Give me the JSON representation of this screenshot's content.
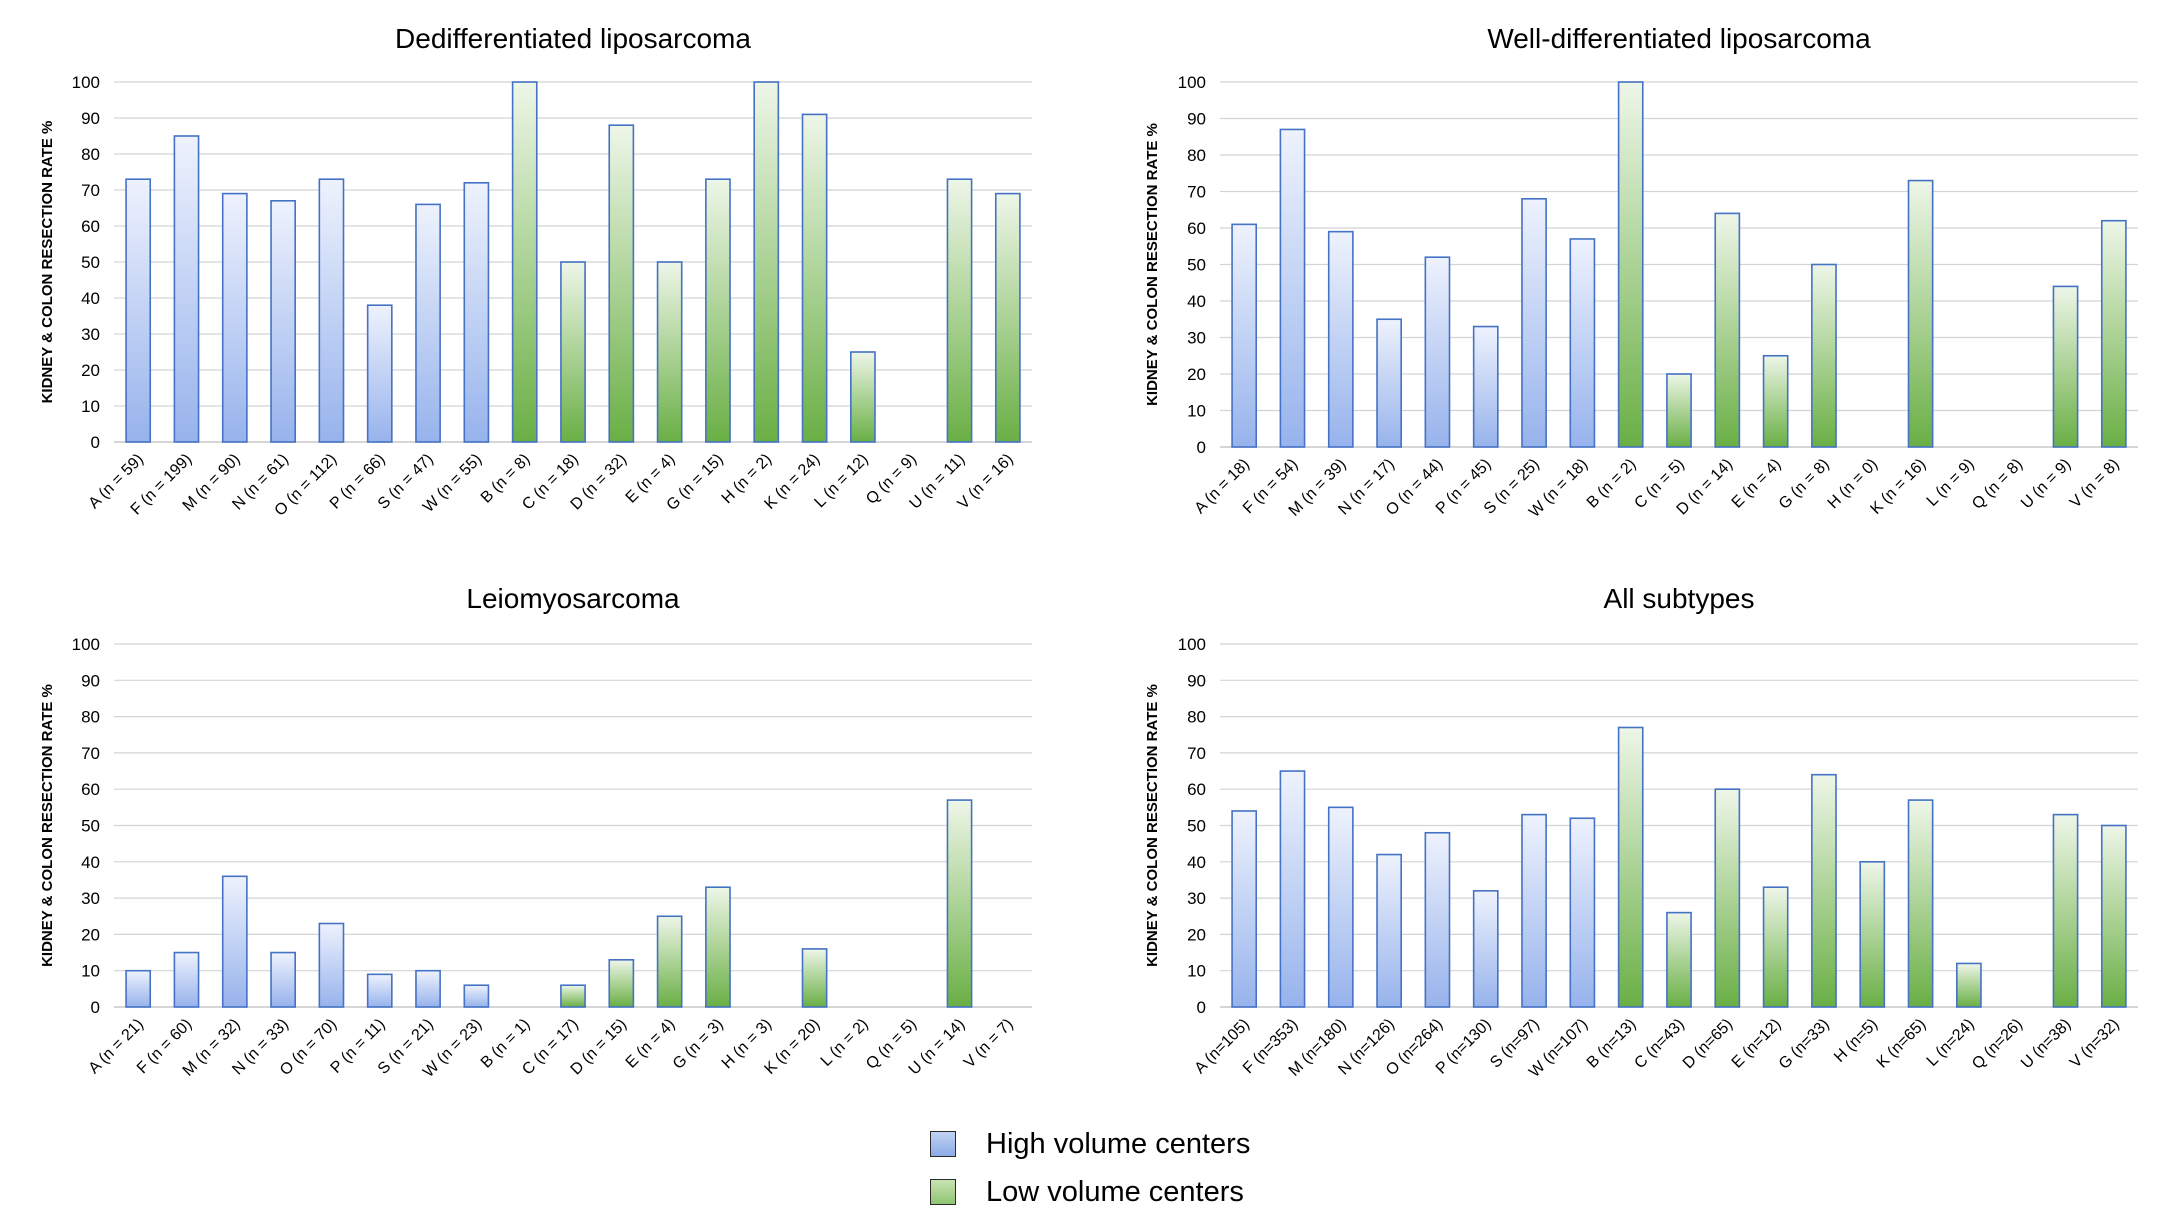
{
  "colors": {
    "high_border": "#4472c4",
    "high_top": "#eef2fd",
    "high_bottom": "#97b3ec",
    "low_border": "#4472c4",
    "low_top": "#eef6e8",
    "low_bottom": "#6aaf45",
    "grid": "#d4d4d4"
  },
  "chart_data": [
    {
      "type": "bar",
      "title": "Dedifferentiated liposarcoma",
      "ylabel": "KIDNEY & COLON RESECTION RATE %",
      "ylim": [
        0,
        100
      ],
      "yticks": [
        "0",
        "10",
        "20",
        "30",
        "40",
        "50",
        "60",
        "70",
        "80",
        "90",
        "100"
      ],
      "categories": [
        "A (n = 59)",
        "F (n = 199)",
        "M (n = 90)",
        "N (n = 61)",
        "O (n = 112)",
        "P (n = 66)",
        "S (n = 47)",
        "W (n = 55)",
        "B (n = 8)",
        "C (n = 18)",
        "D (n = 32)",
        "E (n = 4)",
        "G (n = 15)",
        "H (n = 2)",
        "K (n = 24)",
        "L (n = 12)",
        "Q (n = 9)",
        "U (n = 11)",
        "V (n = 16)"
      ],
      "groups": [
        "high",
        "high",
        "high",
        "high",
        "high",
        "high",
        "high",
        "high",
        "low",
        "low",
        "low",
        "low",
        "low",
        "low",
        "low",
        "low",
        "low",
        "low",
        "low"
      ],
      "values": [
        73,
        85,
        69,
        67,
        73,
        38,
        66,
        72,
        100,
        50,
        88,
        50,
        73,
        100,
        91,
        25,
        0,
        73,
        69
      ]
    },
    {
      "type": "bar",
      "title": "Well-differentiated liposarcoma",
      "ylabel": "KIDNEY & COLON RESECTION RATE %",
      "ylim": [
        0,
        100
      ],
      "yticks": [
        "0",
        "10",
        "20",
        "30",
        "40",
        "50",
        "60",
        "70",
        "80",
        "90",
        "100"
      ],
      "categories": [
        "A (n = 18)",
        "F (n = 54)",
        "M (n = 39)",
        "N (n = 17)",
        "O (n = 44)",
        "P (n = 45)",
        "S (n = 25)",
        "W (n = 18)",
        "B (n = 2)",
        "C (n = 5)",
        "D (n = 14)",
        "E (n = 4)",
        "G (n = 8)",
        "H (n = 0)",
        "K (n = 16)",
        "L (n = 9)",
        "Q (n = 8)",
        "U (n = 9)",
        "V (n = 8)"
      ],
      "groups": [
        "high",
        "high",
        "high",
        "high",
        "high",
        "high",
        "high",
        "high",
        "low",
        "low",
        "low",
        "low",
        "low",
        "low",
        "low",
        "low",
        "low",
        "low",
        "low"
      ],
      "values": [
        61,
        87,
        59,
        35,
        52,
        33,
        68,
        57,
        100,
        20,
        64,
        25,
        50,
        0,
        73,
        0,
        0,
        44,
        62
      ]
    },
    {
      "type": "bar",
      "title": "Leiomyosarcoma",
      "ylabel": "KIDNEY & COLON RESECTION RATE %",
      "ylim": [
        0,
        100
      ],
      "yticks": [
        "0",
        "10",
        "20",
        "30",
        "40",
        "50",
        "60",
        "70",
        "80",
        "90",
        "100"
      ],
      "categories": [
        "A (n = 21)",
        "F (n = 60)",
        "M (n = 32)",
        "N (n = 33)",
        "O (n = 70)",
        "P (n = 11)",
        "S (n = 21)",
        "W (n = 23)",
        "B (n = 1)",
        "C (n = 17)",
        "D (n = 15)",
        "E (n = 4)",
        "G (n = 3)",
        "H (n = 3)",
        "K (n = 20)",
        "L (n = 2)",
        "Q (n = 5)",
        "U (n = 14)",
        "V (n = 7)"
      ],
      "groups": [
        "high",
        "high",
        "high",
        "high",
        "high",
        "high",
        "high",
        "high",
        "low",
        "low",
        "low",
        "low",
        "low",
        "low",
        "low",
        "low",
        "low",
        "low",
        "low"
      ],
      "values": [
        10,
        15,
        36,
        15,
        23,
        9,
        10,
        6,
        0,
        6,
        13,
        25,
        33,
        0,
        16,
        0,
        0,
        57,
        0
      ]
    },
    {
      "type": "bar",
      "title": "All subtypes",
      "ylabel": "KIDNEY & COLON RESECTION RATE %",
      "ylim": [
        0,
        100
      ],
      "yticks": [
        "0",
        "10",
        "20",
        "30",
        "40",
        "50",
        "60",
        "70",
        "80",
        "90",
        "100"
      ],
      "categories": [
        "A (n=105)",
        "F (n=353)",
        "M (n=180)",
        "N (n=126)",
        "O (n=264)",
        "P (n=130)",
        "S (n=97)",
        "W (n=107)",
        "B (n=13)",
        "C (n=43)",
        "D (n=65)",
        "E (n=12)",
        "G (n=33)",
        "H (n=5)",
        "K (n=65)",
        "L (n=24)",
        "Q (n=26)",
        "U (n=38)",
        "V (n=32)"
      ],
      "groups": [
        "high",
        "high",
        "high",
        "high",
        "high",
        "high",
        "high",
        "high",
        "low",
        "low",
        "low",
        "low",
        "low",
        "low",
        "low",
        "low",
        "low",
        "low",
        "low"
      ],
      "values": [
        54,
        65,
        55,
        42,
        48,
        32,
        53,
        52,
        77,
        26,
        60,
        33,
        64,
        40,
        57,
        12,
        0,
        53,
        50
      ]
    }
  ],
  "legend": {
    "items": [
      {
        "label": "High volume centers"
      },
      {
        "label": "Low volume centers"
      }
    ]
  }
}
